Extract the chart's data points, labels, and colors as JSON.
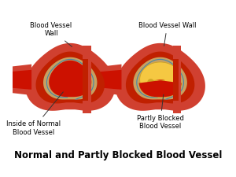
{
  "title": "Normal and Partly Blocked Blood Vessel",
  "title_fontsize": 8.5,
  "title_fontweight": "bold",
  "bg_color": "#ffffff",
  "label_left_top": "Blood Vessel\nWall",
  "label_left_bottom": "Inside of Normal\nBlood Vessel",
  "label_right_top": "Blood Vessel Wall",
  "label_right_bottom": "Partly Blocked\nBlood Vessel",
  "dark_red": "#8B0000",
  "mid_red": "#C02000",
  "bright_red": "#CC1100",
  "outer_red": "#D04030",
  "light_salmon": "#E07060",
  "tan_wall": "#C8A060",
  "gold_wall": "#B8902A",
  "plaque_yellow": "#F5C842",
  "plaque_dark": "#C8A020",
  "text_color": "#000000",
  "teal_line": "#4488AA",
  "arrow_color": "#333333"
}
